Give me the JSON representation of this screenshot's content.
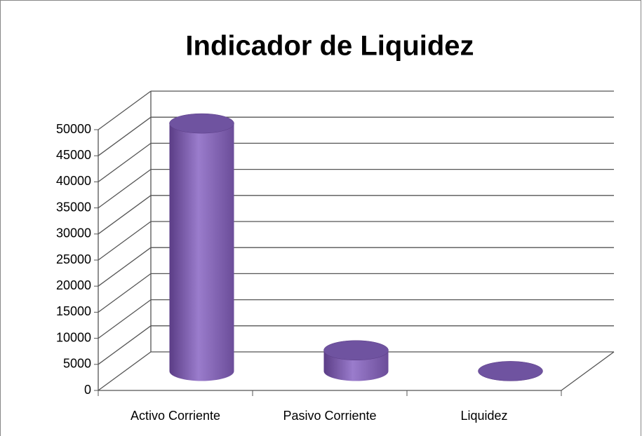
{
  "chart_data": {
    "type": "bar3d",
    "title": "Indicador de Liquidez",
    "categories": [
      "Activo Corriente",
      "Pasivo Corriente",
      "Liquidez"
    ],
    "values": [
      47500,
      4000,
      12
    ],
    "color": "#7f5fb0",
    "ylim": [
      0,
      50000
    ],
    "yticks": [
      0,
      5000,
      10000,
      15000,
      20000,
      25000,
      30000,
      35000,
      40000,
      45000,
      50000
    ],
    "grid": true
  }
}
